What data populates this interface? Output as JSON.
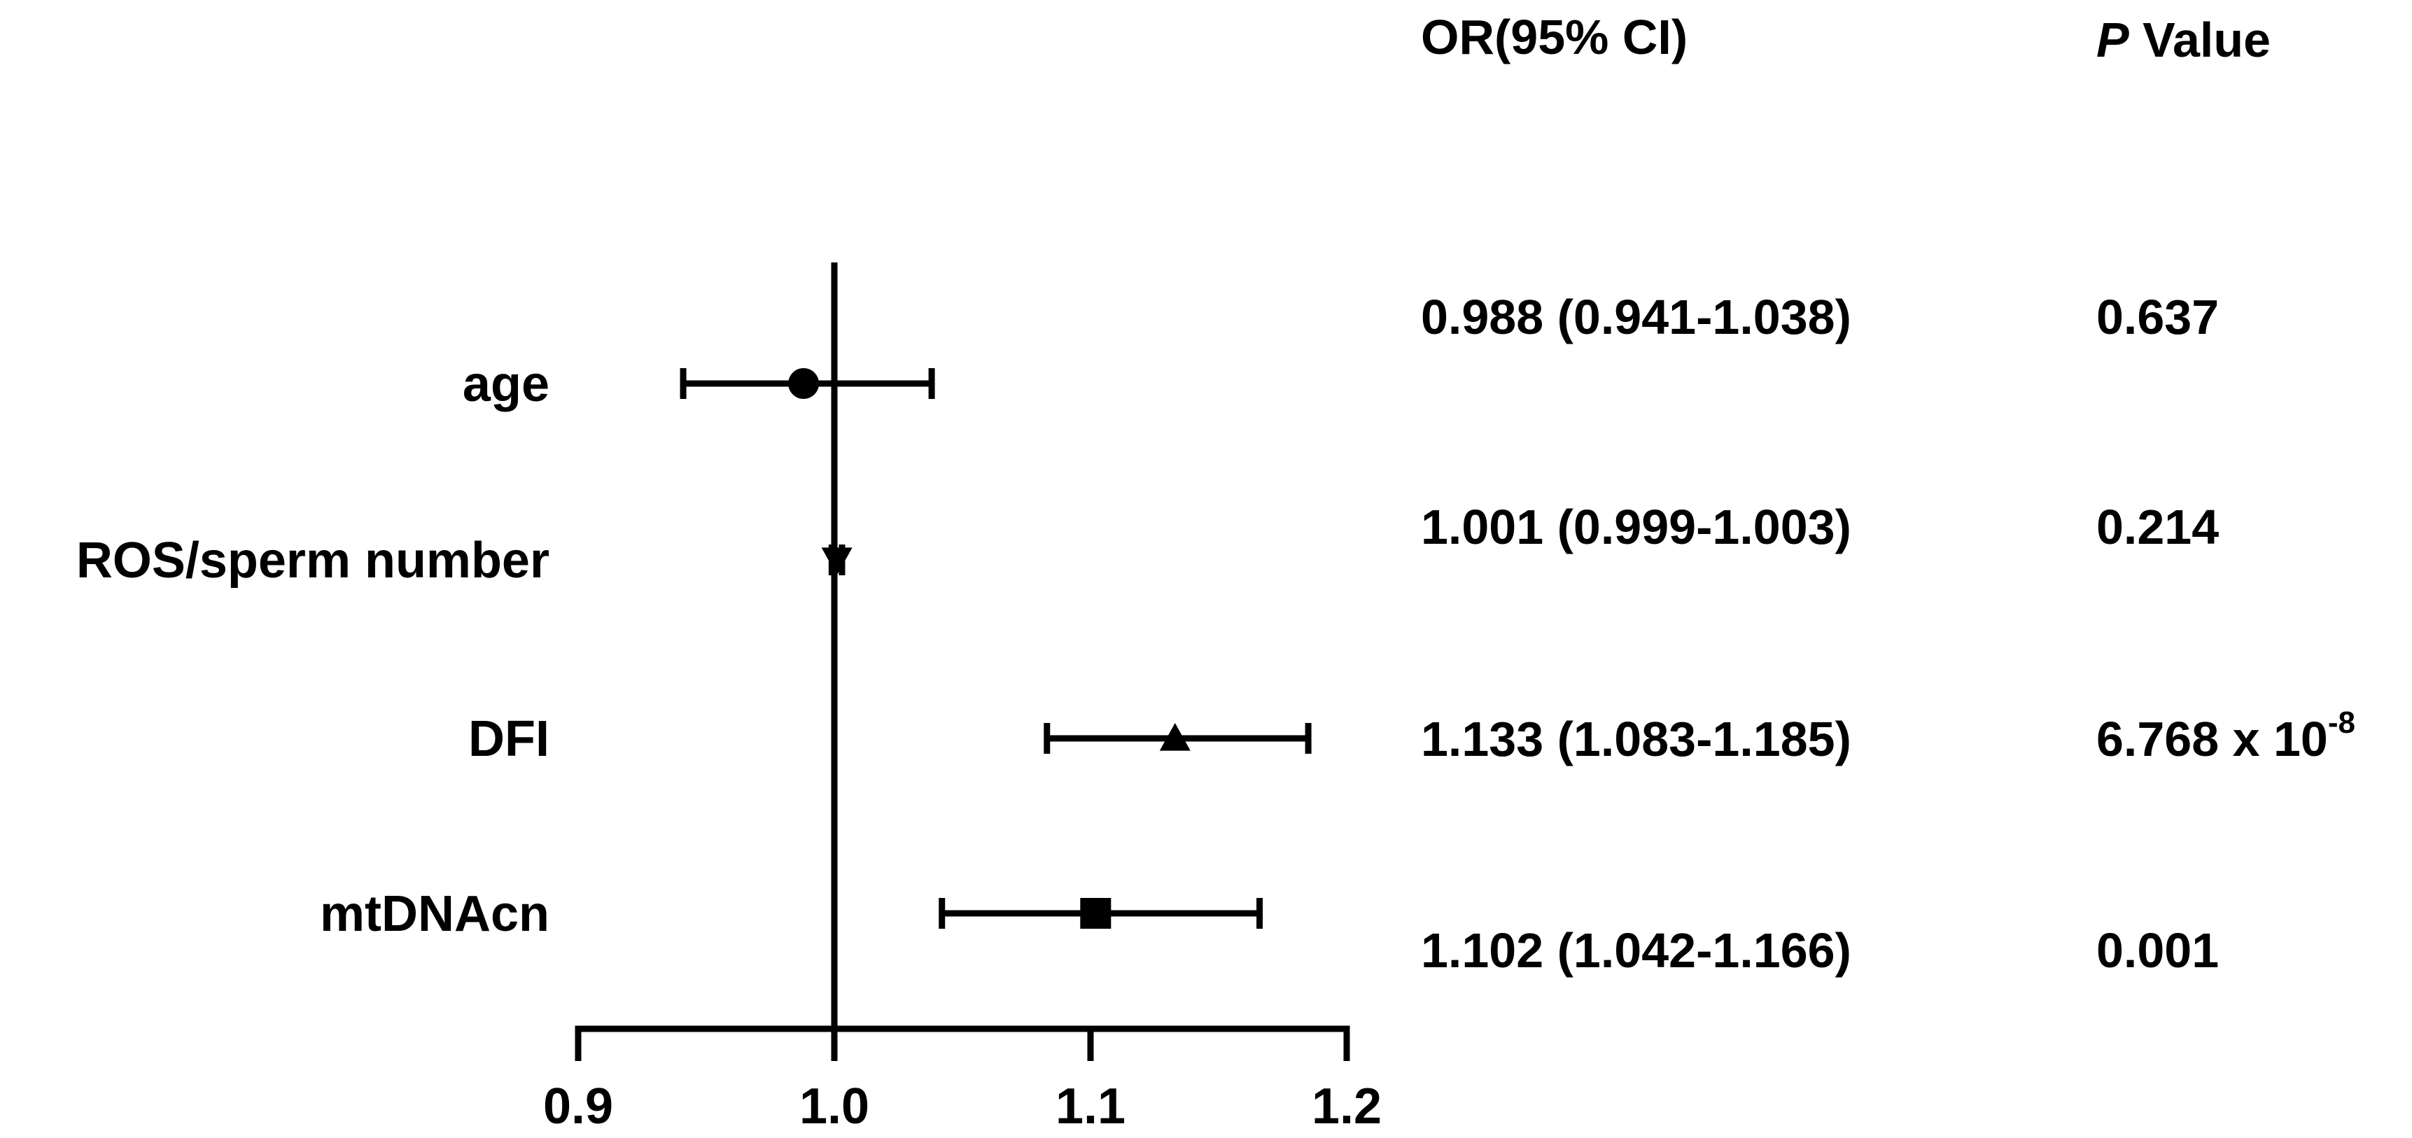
{
  "chart_data": {
    "type": "forest",
    "xlim": [
      0.9,
      1.2
    ],
    "xticks": [
      "0.9",
      "1.0",
      "1.1",
      "1.2"
    ],
    "reference_line": 1.0,
    "column_headers": {
      "or": "OR(95% CI)",
      "p_italic": "P",
      "p_rest": "Value"
    },
    "rows": [
      {
        "label": "age",
        "or": 0.988,
        "lower": 0.941,
        "upper": 1.038,
        "marker": "circle",
        "or_text": "0.988 (0.941-1.038)",
        "p_text": "0.637",
        "p_exp": ""
      },
      {
        "label": "ROS/sperm number",
        "or": 1.001,
        "lower": 0.999,
        "upper": 1.003,
        "marker": "triangle-down",
        "or_text": "1.001 (0.999-1.003)",
        "p_text": "0.214",
        "p_exp": ""
      },
      {
        "label": "DFI",
        "or": 1.133,
        "lower": 1.083,
        "upper": 1.185,
        "marker": "triangle-up",
        "or_text": "1.133 (1.083-1.185)",
        "p_text": "6.768 x 10",
        "p_exp": "-8"
      },
      {
        "label": "mtDNAcn",
        "or": 1.102,
        "lower": 1.042,
        "upper": 1.166,
        "marker": "square",
        "or_text": "1.102 (1.042-1.166)",
        "p_text": "0.001",
        "p_exp": ""
      }
    ]
  }
}
